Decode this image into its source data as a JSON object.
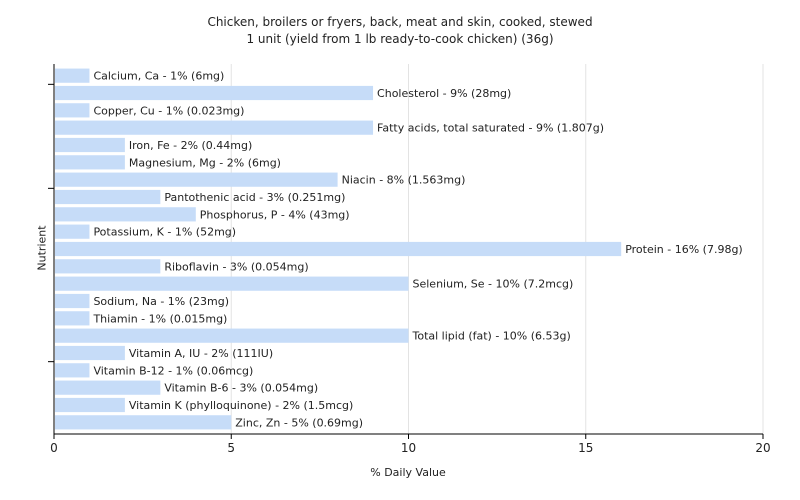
{
  "chart_data": {
    "type": "bar",
    "orientation": "horizontal",
    "title": "Chicken, broilers or fryers, back, meat and skin, cooked, stewed",
    "subtitle": "1 unit (yield from 1 lb ready-to-cook chicken) (36g)",
    "xlabel": "% Daily Value",
    "ylabel": "Nutrient",
    "xlim": [
      0,
      20
    ],
    "xticks": [
      "0",
      "5",
      "10",
      "15",
      "20"
    ],
    "grid": true,
    "bar_color": "#c6dcf8",
    "categories": [
      "Calcium, Ca",
      "Cholesterol",
      "Copper, Cu",
      "Fatty acids, total saturated",
      "Iron, Fe",
      "Magnesium, Mg",
      "Niacin",
      "Pantothenic acid",
      "Phosphorus, P",
      "Potassium, K",
      "Protein",
      "Riboflavin",
      "Selenium, Se",
      "Sodium, Na",
      "Thiamin",
      "Total lipid (fat)",
      "Vitamin A, IU",
      "Vitamin B-12",
      "Vitamin B-6",
      "Vitamin K (phylloquinone)",
      "Zinc, Zn"
    ],
    "values": [
      1,
      9,
      1,
      9,
      2,
      2,
      8,
      3,
      4,
      1,
      16,
      3,
      10,
      1,
      1,
      10,
      2,
      1,
      3,
      2,
      5
    ],
    "labels": [
      "Calcium, Ca - 1% (6mg)",
      "Cholesterol - 9% (28mg)",
      "Copper, Cu - 1% (0.023mg)",
      "Fatty acids, total saturated - 9% (1.807g)",
      "Iron, Fe - 2% (0.44mg)",
      "Magnesium, Mg - 2% (6mg)",
      "Niacin - 8% (1.563mg)",
      "Pantothenic acid - 3% (0.251mg)",
      "Phosphorus, P - 4% (43mg)",
      "Potassium, K - 1% (52mg)",
      "Protein - 16% (7.98g)",
      "Riboflavin - 3% (0.054mg)",
      "Selenium, Se - 10% (7.2mcg)",
      "Sodium, Na - 1% (23mg)",
      "Thiamin - 1% (0.015mg)",
      "Total lipid (fat) - 10% (6.53g)",
      "Vitamin A, IU - 2% (111IU)",
      "Vitamin B-12 - 1% (0.06mcg)",
      "Vitamin B-6 - 3% (0.054mg)",
      "Vitamin K (phylloquinone) - 2% (1.5mcg)",
      "Zinc, Zn - 5% (0.69mg)"
    ]
  }
}
